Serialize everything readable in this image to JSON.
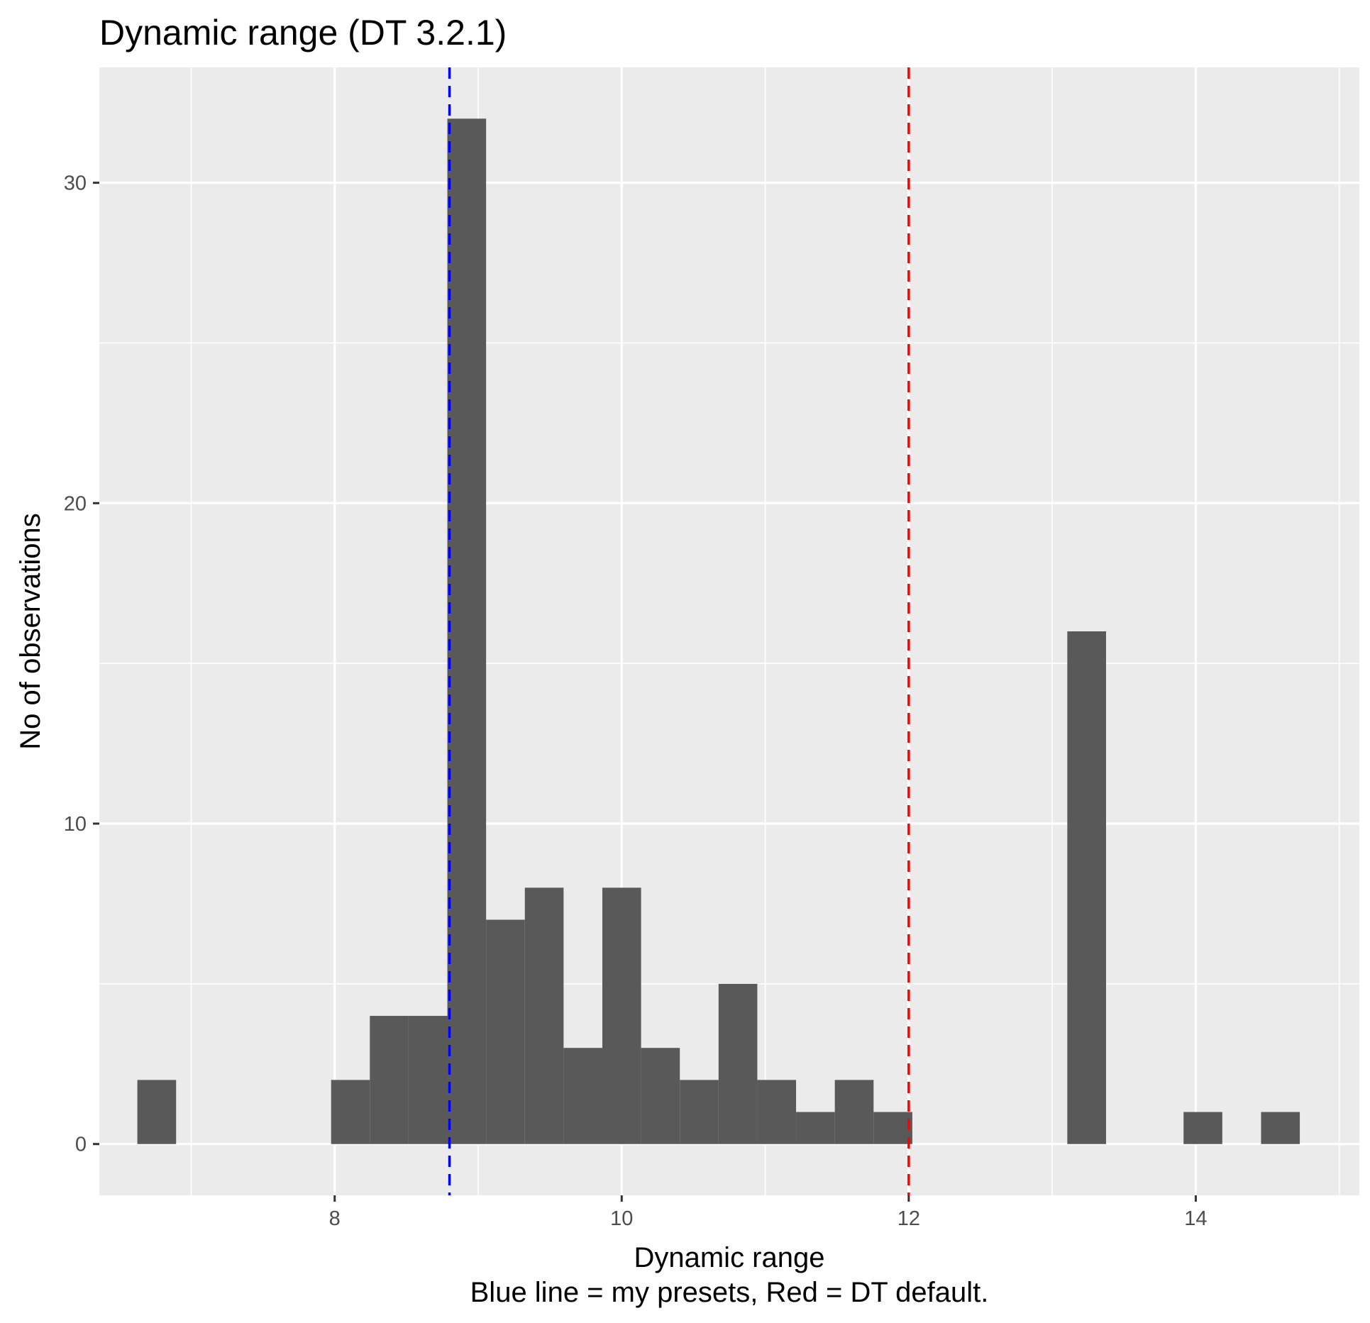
{
  "chart_data": {
    "type": "bar",
    "title": "Dynamic range (DT 3.2.1)",
    "xlabel": "Dynamic range",
    "caption": "Blue line = my presets, Red = DT default.",
    "ylabel": "No of observations",
    "xlim": [
      6.36,
      15.14
    ],
    "ylim": [
      -1.6,
      33.6
    ],
    "x_ticks": [
      8,
      10,
      12,
      14
    ],
    "x_tick_labels": [
      "8",
      "10",
      "12",
      "14"
    ],
    "y_ticks": [
      0,
      10,
      20,
      30
    ],
    "y_tick_labels": [
      "0",
      "10",
      "20",
      "30"
    ],
    "bin_width": 0.27,
    "bins": [
      {
        "x": 6.76,
        "count": 2
      },
      {
        "x": 8.11,
        "count": 2
      },
      {
        "x": 8.38,
        "count": 4
      },
      {
        "x": 8.65,
        "count": 4
      },
      {
        "x": 8.92,
        "count": 32
      },
      {
        "x": 9.19,
        "count": 7
      },
      {
        "x": 9.46,
        "count": 8
      },
      {
        "x": 9.73,
        "count": 3
      },
      {
        "x": 10.0,
        "count": 8
      },
      {
        "x": 10.27,
        "count": 3
      },
      {
        "x": 10.54,
        "count": 2
      },
      {
        "x": 10.81,
        "count": 5
      },
      {
        "x": 11.08,
        "count": 2
      },
      {
        "x": 11.35,
        "count": 1
      },
      {
        "x": 11.62,
        "count": 2
      },
      {
        "x": 11.89,
        "count": 1
      },
      {
        "x": 13.24,
        "count": 16
      },
      {
        "x": 14.05,
        "count": 1
      },
      {
        "x": 14.59,
        "count": 1
      }
    ],
    "reference_lines": [
      {
        "x": 8.8,
        "color": "#0000ff",
        "style": "dashed"
      },
      {
        "x": 12.0,
        "color": "#ff0000",
        "style": "dashed"
      }
    ],
    "bar_color": "#595959",
    "panel_background": "#ebebeb",
    "grid": true,
    "legend": "none"
  }
}
